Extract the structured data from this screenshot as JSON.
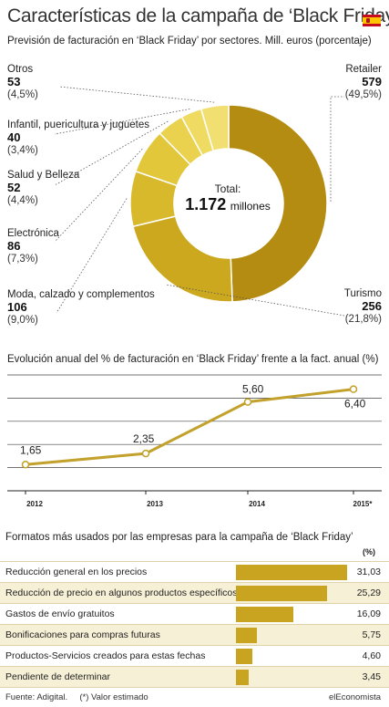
{
  "header": {
    "title": "Características de la campaña de ‘Black Friday’",
    "flag_icon": "spain-flag-icon"
  },
  "donut": {
    "subtitle": "Previsión de facturación en ‘Black Friday’ por sectores. Mill. euros (porcentaje)",
    "total_label": "Total:",
    "total_value": "1.172",
    "total_unit": "millones"
  },
  "chart_data": [
    {
      "type": "pie",
      "title": "Previsión de facturación en ‘Black Friday’ por sectores. Mill. euros (porcentaje)",
      "categories": [
        "Retailer",
        "Turismo",
        "Moda, calzado y complementos",
        "Electrónica",
        "Salud y Belleza",
        "Infantil, puericultura y juguetes",
        "Otros"
      ],
      "values": [
        579,
        256,
        106,
        86,
        52,
        40,
        53
      ],
      "value_labels": [
        "579",
        "256",
        "106",
        "86",
        "52",
        "40",
        "53"
      ],
      "percent_labels": [
        "(49,5%)",
        "(21,8%)",
        "(9,0%)",
        "(7,3%)",
        "(4,4%)",
        "(3,4%)",
        "(4,5%)"
      ],
      "colors": [
        "#b58c12",
        "#cca81f",
        "#d8b92c",
        "#e3c73b",
        "#ead24e",
        "#efdb62",
        "#f1df72"
      ]
    },
    {
      "type": "line",
      "title": "Evolución anual del % de facturación en ‘Black Friday’ frente a la fact. anual (%)",
      "categories": [
        "2012",
        "2013",
        "2014",
        "2015*"
      ],
      "values": [
        1.65,
        2.35,
        5.6,
        6.4
      ],
      "value_labels": [
        "1,65",
        "2,35",
        "5,60",
        "6,40"
      ],
      "ylim": [
        0,
        7.3
      ],
      "grid": true,
      "color": "#c2a12c"
    },
    {
      "type": "bar",
      "title": "Formatos más usados por las empresas para la campaña de ‘Black Friday’",
      "unit_label": "(%)",
      "categories": [
        "Reducción general en los precios",
        "Reducción de precio en algunos productos específicos",
        "Gastos de envío gratuitos",
        "Bonificaciones para compras futuras",
        "Productos-Servicios creados para estas fechas",
        "Pendiente de determinar"
      ],
      "values": [
        31.03,
        25.29,
        16.09,
        5.75,
        4.6,
        3.45
      ],
      "value_labels": [
        "31,03",
        "25,29",
        "16,09",
        "5,75",
        "4,60",
        "3,45"
      ],
      "xlim": [
        0,
        32.5
      ],
      "row_colors": [
        "#ffffff",
        "#f6f0d6"
      ],
      "bar_color": "#c8a421"
    }
  ],
  "footer": {
    "source": "Fuente: Adigital.",
    "note": "(*) Valor estimado",
    "brand": "elEconomista"
  }
}
